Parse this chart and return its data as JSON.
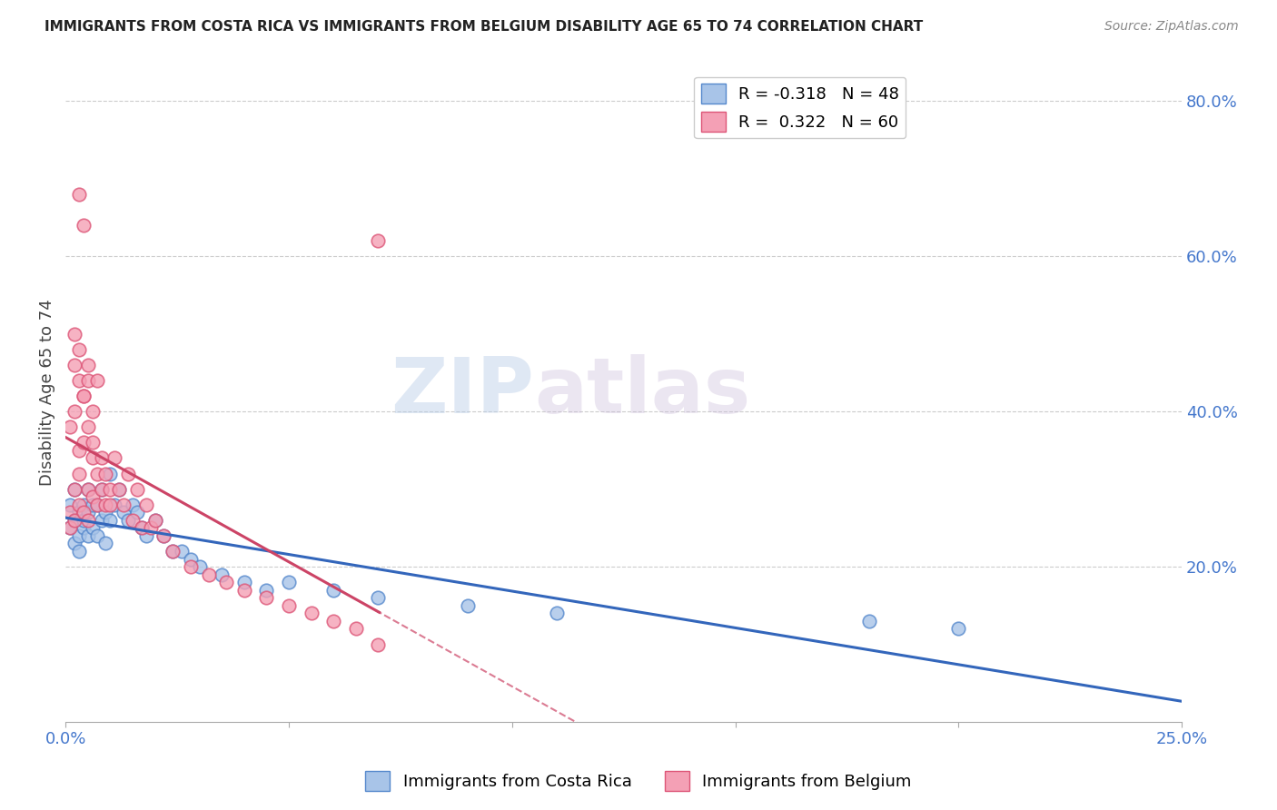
{
  "title": "IMMIGRANTS FROM COSTA RICA VS IMMIGRANTS FROM BELGIUM DISABILITY AGE 65 TO 74 CORRELATION CHART",
  "source": "Source: ZipAtlas.com",
  "ylabel": "Disability Age 65 to 74",
  "xmin": 0.0,
  "xmax": 0.25,
  "ymin": 0.0,
  "ymax": 0.85,
  "watermark_zip": "ZIP",
  "watermark_atlas": "atlas",
  "costa_rica_color": "#a8c4e8",
  "belgium_color": "#f4a0b5",
  "costa_rica_edge": "#5588cc",
  "belgium_edge": "#dd5577",
  "trend_costa_rica_color": "#3366bb",
  "trend_belgium_color": "#cc4466",
  "legend_cr_r": "-0.318",
  "legend_cr_n": "48",
  "legend_be_r": "0.322",
  "legend_be_n": "60",
  "costa_rica_x": [
    0.001,
    0.001,
    0.002,
    0.002,
    0.002,
    0.003,
    0.003,
    0.003,
    0.004,
    0.004,
    0.004,
    0.005,
    0.005,
    0.005,
    0.006,
    0.006,
    0.007,
    0.007,
    0.008,
    0.008,
    0.009,
    0.009,
    0.01,
    0.01,
    0.011,
    0.012,
    0.013,
    0.014,
    0.015,
    0.016,
    0.017,
    0.018,
    0.02,
    0.022,
    0.024,
    0.026,
    0.028,
    0.03,
    0.035,
    0.04,
    0.045,
    0.05,
    0.06,
    0.07,
    0.09,
    0.11,
    0.18,
    0.2
  ],
  "costa_rica_y": [
    0.28,
    0.25,
    0.3,
    0.26,
    0.23,
    0.27,
    0.24,
    0.22,
    0.28,
    0.25,
    0.26,
    0.3,
    0.27,
    0.24,
    0.28,
    0.25,
    0.28,
    0.24,
    0.3,
    0.26,
    0.27,
    0.23,
    0.32,
    0.26,
    0.28,
    0.3,
    0.27,
    0.26,
    0.28,
    0.27,
    0.25,
    0.24,
    0.26,
    0.24,
    0.22,
    0.22,
    0.21,
    0.2,
    0.19,
    0.18,
    0.17,
    0.18,
    0.17,
    0.16,
    0.15,
    0.14,
    0.13,
    0.12
  ],
  "belgium_x": [
    0.001,
    0.001,
    0.001,
    0.002,
    0.002,
    0.002,
    0.003,
    0.003,
    0.003,
    0.003,
    0.004,
    0.004,
    0.004,
    0.005,
    0.005,
    0.005,
    0.006,
    0.006,
    0.006,
    0.007,
    0.007,
    0.008,
    0.008,
    0.009,
    0.009,
    0.01,
    0.01,
    0.011,
    0.012,
    0.013,
    0.014,
    0.015,
    0.016,
    0.017,
    0.018,
    0.019,
    0.02,
    0.022,
    0.024,
    0.028,
    0.032,
    0.036,
    0.04,
    0.045,
    0.05,
    0.055,
    0.06,
    0.065,
    0.07,
    0.002,
    0.003,
    0.004,
    0.005,
    0.006,
    0.003,
    0.004,
    0.005,
    0.007,
    0.07,
    0.002
  ],
  "belgium_y": [
    0.25,
    0.27,
    0.38,
    0.3,
    0.26,
    0.4,
    0.32,
    0.44,
    0.28,
    0.35,
    0.27,
    0.36,
    0.42,
    0.3,
    0.38,
    0.26,
    0.34,
    0.29,
    0.36,
    0.32,
    0.28,
    0.34,
    0.3,
    0.32,
    0.28,
    0.3,
    0.28,
    0.34,
    0.3,
    0.28,
    0.32,
    0.26,
    0.3,
    0.25,
    0.28,
    0.25,
    0.26,
    0.24,
    0.22,
    0.2,
    0.19,
    0.18,
    0.17,
    0.16,
    0.15,
    0.14,
    0.13,
    0.12,
    0.1,
    0.46,
    0.48,
    0.42,
    0.44,
    0.4,
    0.68,
    0.64,
    0.46,
    0.44,
    0.62,
    0.5
  ]
}
